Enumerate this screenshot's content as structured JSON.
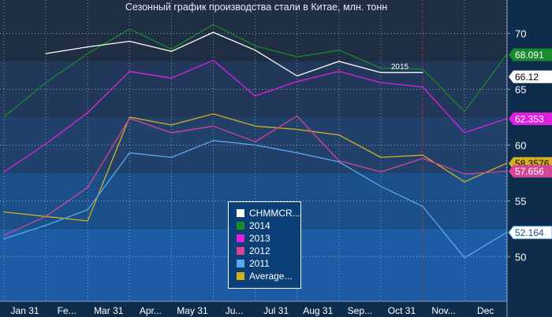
{
  "chart_data": {
    "type": "line",
    "title": "Сезонный график производства стали в Китае, млн. тонн",
    "xlabel": "",
    "ylabel": "",
    "ylim": [
      46,
      73
    ],
    "yticks": [
      50,
      55,
      60,
      65,
      70
    ],
    "x_tick_labels": [
      "Jan 31",
      "Fe...",
      "Mar 31",
      "Apr...",
      "May 31",
      "Ju...",
      "Jul 31",
      "Aug 31",
      "Sep...",
      "Oct 31",
      "Nov...",
      "Dec"
    ],
    "grid": true,
    "legend_position": "bottom-center",
    "series": [
      {
        "name": "CHMMCR...",
        "color": "#ffffff",
        "values": [
          null,
          68.2,
          68.8,
          69.3,
          68.4,
          70.1,
          68.5,
          66.2,
          67.5,
          66.5,
          66.5,
          null,
          null
        ]
      },
      {
        "name": "2014",
        "color": "#1a8a2e",
        "values": [
          62.5,
          65.6,
          68.2,
          70.4,
          68.6,
          70.8,
          68.9,
          67.9,
          68.5,
          66.9,
          66.8,
          63.0,
          68.091
        ]
      },
      {
        "name": "2013",
        "color": "#e020e0",
        "values": [
          57.6,
          60.1,
          62.9,
          66.6,
          66.0,
          67.6,
          64.4,
          65.7,
          66.6,
          65.6,
          65.2,
          61.1,
          62.353
        ]
      },
      {
        "name": "2012",
        "color": "#d64596",
        "values": [
          51.9,
          53.6,
          56.2,
          62.4,
          61.1,
          61.7,
          60.3,
          62.6,
          58.6,
          57.6,
          58.8,
          57.4,
          57.656
        ]
      },
      {
        "name": "2011",
        "color": "#5ba9ea",
        "values": [
          51.6,
          52.8,
          54.2,
          59.3,
          58.9,
          60.4,
          60.0,
          59.3,
          58.5,
          56.3,
          54.5,
          49.9,
          52.164
        ]
      },
      {
        "name": "Average...",
        "color": "#d4b020",
        "values": [
          54.0,
          53.6,
          53.2,
          62.5,
          61.8,
          62.8,
          61.7,
          61.4,
          60.9,
          58.9,
          59.1,
          56.7,
          58.3576
        ]
      }
    ],
    "end_labels": [
      {
        "text": "68.091",
        "fill": "#1a8a2e",
        "text_color": "#ffffff"
      },
      {
        "text": "66.12",
        "fill": "#ffffff",
        "text_color": "#000000"
      },
      {
        "text": "62.353",
        "fill": "#e020e0",
        "text_color": "#ffffff"
      },
      {
        "text": "58.3576",
        "fill": "#d4b020",
        "text_color": "#000000"
      },
      {
        "text": "57.656",
        "fill": "#d64596",
        "text_color": "#ffffff"
      },
      {
        "text": "52.164",
        "fill": "#ffffff",
        "text_color": "#1a4f8a",
        "stroke": "#5ba9ea"
      }
    ],
    "annotation": "2015"
  }
}
